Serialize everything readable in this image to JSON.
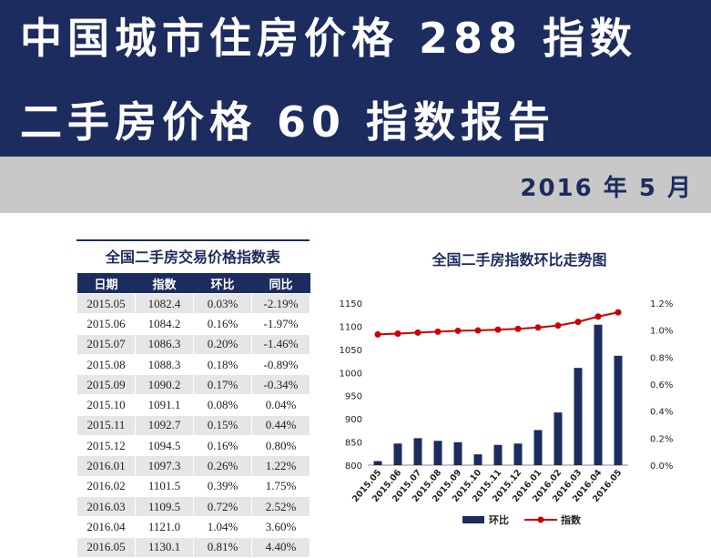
{
  "header": {
    "title_line1": "中国城市住房价格 288 指数",
    "title_line2": "二手房价格 60 指数报告",
    "date": "2016 年 5 月"
  },
  "table": {
    "title": "全国二手房交易价格指数表",
    "headers": [
      "日期",
      "指数",
      "环比",
      "同比"
    ],
    "rows": [
      [
        "2015.05",
        "1082.4",
        "0.03%",
        "-2.19%"
      ],
      [
        "2015.06",
        "1084.2",
        "0.16%",
        "-1.97%"
      ],
      [
        "2015.07",
        "1086.3",
        "0.20%",
        "-1.46%"
      ],
      [
        "2015.08",
        "1088.3",
        "0.18%",
        "-0.89%"
      ],
      [
        "2015.09",
        "1090.2",
        "0.17%",
        "-0.34%"
      ],
      [
        "2015.10",
        "1091.1",
        "0.08%",
        "0.04%"
      ],
      [
        "2015.11",
        "1092.7",
        "0.15%",
        "0.44%"
      ],
      [
        "2015.12",
        "1094.5",
        "0.16%",
        "0.80%"
      ],
      [
        "2016.01",
        "1097.3",
        "0.26%",
        "1.22%"
      ],
      [
        "2016.02",
        "1101.5",
        "0.39%",
        "1.75%"
      ],
      [
        "2016.03",
        "1109.5",
        "0.72%",
        "2.52%"
      ],
      [
        "2016.04",
        "1121.0",
        "1.04%",
        "3.60%"
      ],
      [
        "2016.05",
        "1130.1",
        "0.81%",
        "4.40%"
      ]
    ]
  },
  "colors": {
    "navy": "#1c2c5e",
    "gray_band": "#c8c8c8",
    "line": "#cc0000"
  },
  "chart_data": {
    "type": "bar",
    "title": "全国二手房指数环比走势图",
    "categories": [
      "2015.05",
      "2015.06",
      "2015.07",
      "2015.08",
      "2015.09",
      "2015.10",
      "2015.11",
      "2015.12",
      "2016.01",
      "2016.02",
      "2016.03",
      "2016.04",
      "2016.05"
    ],
    "series": [
      {
        "name": "环比",
        "type": "bar",
        "axis": "right",
        "values": [
          0.03,
          0.16,
          0.2,
          0.18,
          0.17,
          0.08,
          0.15,
          0.16,
          0.26,
          0.39,
          0.72,
          1.04,
          0.81
        ]
      },
      {
        "name": "指数",
        "type": "line",
        "axis": "left",
        "values": [
          1082.4,
          1084.2,
          1086.3,
          1088.3,
          1090.2,
          1091.1,
          1092.7,
          1094.5,
          1097.3,
          1101.5,
          1109.5,
          1121.0,
          1130.1
        ]
      }
    ],
    "y_left": {
      "min": 800,
      "max": 1150,
      "ticks": [
        "800",
        "850",
        "900",
        "950",
        "1000",
        "1050",
        "1100",
        "1150"
      ]
    },
    "y_right": {
      "min": 0,
      "max": 1.2,
      "ticks": [
        "0.0%",
        "0.2%",
        "0.4%",
        "0.6%",
        "0.8%",
        "1.0%",
        "1.2%"
      ]
    },
    "legend": "bottom",
    "grid": false
  }
}
